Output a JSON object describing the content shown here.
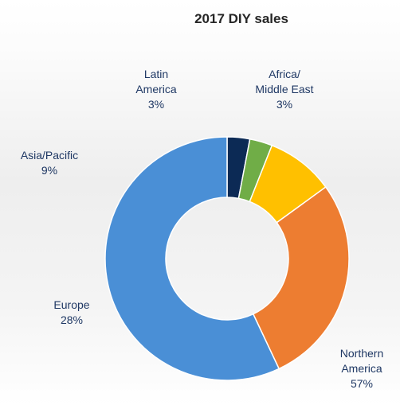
{
  "chart_data": {
    "type": "pie",
    "variant": "donut",
    "title": "2017 DIY sales",
    "slices": [
      {
        "label": [
          "Northern",
          "America"
        ],
        "value": 57,
        "value_label": "57%",
        "color": "#4a8fd6"
      },
      {
        "label": [
          "Europe"
        ],
        "value": 28,
        "value_label": "28%",
        "color": "#ed7d31"
      },
      {
        "label": [
          "Asia/Pacific"
        ],
        "value": 9,
        "value_label": "9%",
        "color": "#ffc000"
      },
      {
        "label": [
          "Latin",
          "America"
        ],
        "value": 3,
        "value_label": "3%",
        "color": "#70ad47"
      },
      {
        "label": [
          "Africa/",
          "Middle East"
        ],
        "value": 3,
        "value_label": "3%",
        "color": "#0c2a55"
      }
    ],
    "legend": "none"
  }
}
